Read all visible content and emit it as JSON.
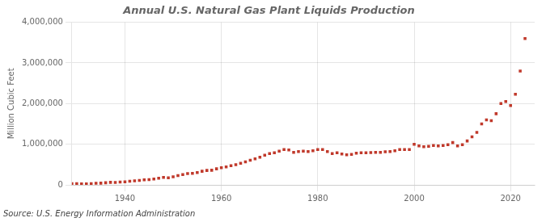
{
  "chart_data": {
    "type": "scatter",
    "title": "Annual U.S. Natural Gas Plant Liquids Production",
    "ylabel": "Million Cubic Feet",
    "annotations": [
      "Source: U.S. Energy Information Administration"
    ],
    "color": "#c0392b",
    "marker": "square",
    "grid": true,
    "xlim": [
      1929,
      2025
    ],
    "ylim": [
      0,
      4000000
    ],
    "xticks": [
      1940,
      1960,
      1980,
      2000,
      2020
    ],
    "yticks": [
      0,
      {
        "value": 1000000,
        "label": "1,000,000"
      },
      {
        "value": 2000000,
        "label": "2,000,000"
      },
      {
        "value": 3000000,
        "label": "3,000,000"
      },
      {
        "value": 4000000,
        "label": "4,000,000"
      }
    ],
    "x": [
      1929,
      1930,
      1931,
      1932,
      1933,
      1934,
      1935,
      1936,
      1937,
      1938,
      1939,
      1940,
      1941,
      1942,
      1943,
      1944,
      1945,
      1946,
      1947,
      1948,
      1949,
      1950,
      1951,
      1952,
      1953,
      1954,
      1955,
      1956,
      1957,
      1958,
      1959,
      1960,
      1961,
      1962,
      1963,
      1964,
      1965,
      1966,
      1967,
      1968,
      1969,
      1970,
      1971,
      1972,
      1973,
      1974,
      1975,
      1976,
      1977,
      1978,
      1979,
      1980,
      1981,
      1982,
      1983,
      1984,
      1985,
      1986,
      1987,
      1988,
      1989,
      1990,
      1991,
      1992,
      1993,
      1994,
      1995,
      1996,
      1997,
      1998,
      1999,
      2000,
      2001,
      2002,
      2003,
      2004,
      2005,
      2006,
      2007,
      2008,
      2009,
      2010,
      2011,
      2012,
      2013,
      2014,
      2015,
      2016,
      2017,
      2018,
      2019,
      2020,
      2021,
      2022,
      2023
    ],
    "values": [
      30000,
      28000,
      25000,
      23000,
      30000,
      38000,
      42000,
      52000,
      62000,
      60000,
      68000,
      75000,
      88000,
      100000,
      110000,
      125000,
      130000,
      145000,
      165000,
      185000,
      175000,
      200000,
      230000,
      255000,
      280000,
      285000,
      305000,
      335000,
      355000,
      360000,
      395000,
      420000,
      440000,
      470000,
      495000,
      530000,
      565000,
      605000,
      640000,
      680000,
      730000,
      770000,
      790000,
      830000,
      870000,
      860000,
      800000,
      820000,
      830000,
      820000,
      840000,
      870000,
      870000,
      820000,
      770000,
      790000,
      760000,
      740000,
      750000,
      780000,
      790000,
      790000,
      795000,
      800000,
      800000,
      815000,
      820000,
      840000,
      870000,
      870000,
      870000,
      1000000,
      960000,
      940000,
      950000,
      970000,
      960000,
      970000,
      990000,
      1040000,
      960000,
      990000,
      1080000,
      1180000,
      1290000,
      1500000,
      1600000,
      1580000,
      1750000,
      2000000,
      2050000,
      1950000,
      2230000,
      2800000,
      3600000
    ]
  }
}
